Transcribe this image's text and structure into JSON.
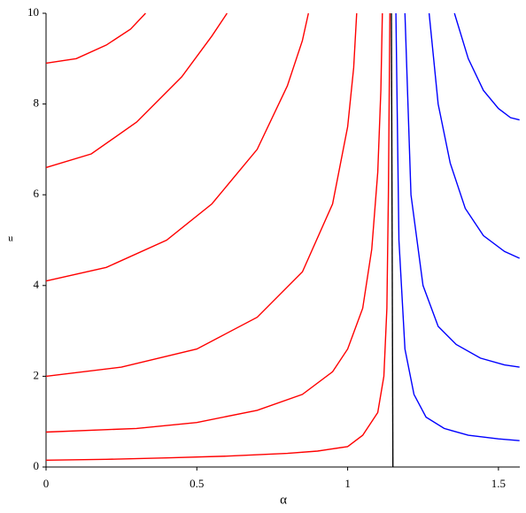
{
  "chart_data": {
    "type": "line",
    "xlabel": "α",
    "ylabel": "u",
    "xlim": [
      0,
      1.5708
    ],
    "ylim": [
      0,
      10
    ],
    "xticks": [
      0,
      0.5,
      1,
      1.5
    ],
    "yticks": [
      0,
      2,
      4,
      6,
      8,
      10
    ],
    "series": [
      {
        "color": "#ff0000",
        "x": [
          0,
          0.2,
          0.4,
          0.6,
          0.8,
          0.9,
          1.0,
          1.05,
          1.1,
          1.12,
          1.13,
          1.135,
          1.14
        ],
        "values": [
          0.15,
          0.17,
          0.2,
          0.24,
          0.3,
          0.35,
          0.45,
          0.7,
          1.2,
          2,
          3.5,
          6,
          10
        ]
      },
      {
        "color": "#ff0000",
        "x": [
          0,
          0.3,
          0.5,
          0.7,
          0.85,
          0.95,
          1.0,
          1.05,
          1.08,
          1.1,
          1.11,
          1.115
        ],
        "values": [
          0.77,
          0.85,
          0.98,
          1.25,
          1.6,
          2.1,
          2.6,
          3.5,
          4.8,
          6.5,
          8.3,
          10
        ]
      },
      {
        "color": "#ff0000",
        "x": [
          0,
          0.25,
          0.5,
          0.7,
          0.85,
          0.95,
          1.0,
          1.02,
          1.03
        ],
        "values": [
          2.0,
          2.2,
          2.6,
          3.3,
          4.3,
          5.8,
          7.5,
          8.8,
          10
        ]
      },
      {
        "color": "#ff0000",
        "x": [
          0,
          0.2,
          0.4,
          0.55,
          0.7,
          0.8,
          0.85,
          0.87
        ],
        "values": [
          4.1,
          4.4,
          5.0,
          5.8,
          7.0,
          8.4,
          9.4,
          10
        ]
      },
      {
        "color": "#ff0000",
        "x": [
          0,
          0.15,
          0.3,
          0.45,
          0.55,
          0.6
        ],
        "values": [
          6.6,
          6.9,
          7.6,
          8.6,
          9.5,
          10
        ]
      },
      {
        "color": "#ff0000",
        "x": [
          0,
          0.1,
          0.2,
          0.28,
          0.33
        ],
        "values": [
          8.9,
          9.0,
          9.3,
          9.65,
          10
        ]
      },
      {
        "color": "#0000ff",
        "x": [
          1.16,
          1.17,
          1.19,
          1.22,
          1.26,
          1.32,
          1.4,
          1.5,
          1.57
        ],
        "values": [
          10,
          5,
          2.6,
          1.6,
          1.1,
          0.85,
          0.7,
          0.62,
          0.58
        ]
      },
      {
        "color": "#0000ff",
        "x": [
          1.19,
          1.21,
          1.25,
          1.3,
          1.36,
          1.44,
          1.52,
          1.57
        ],
        "values": [
          10,
          6,
          4.0,
          3.1,
          2.7,
          2.4,
          2.25,
          2.2
        ]
      },
      {
        "color": "#0000ff",
        "x": [
          1.27,
          1.3,
          1.34,
          1.39,
          1.45,
          1.52,
          1.57
        ],
        "values": [
          10,
          8,
          6.7,
          5.7,
          5.1,
          4.75,
          4.6
        ]
      },
      {
        "color": "#0000ff",
        "x": [
          1.354,
          1.4,
          1.45,
          1.5,
          1.54,
          1.57
        ],
        "values": [
          10,
          9.0,
          8.3,
          7.9,
          7.7,
          7.65
        ]
      },
      {
        "color": "#000000",
        "x": [
          1.15,
          1.145
        ],
        "values": [
          0,
          10
        ]
      }
    ]
  }
}
